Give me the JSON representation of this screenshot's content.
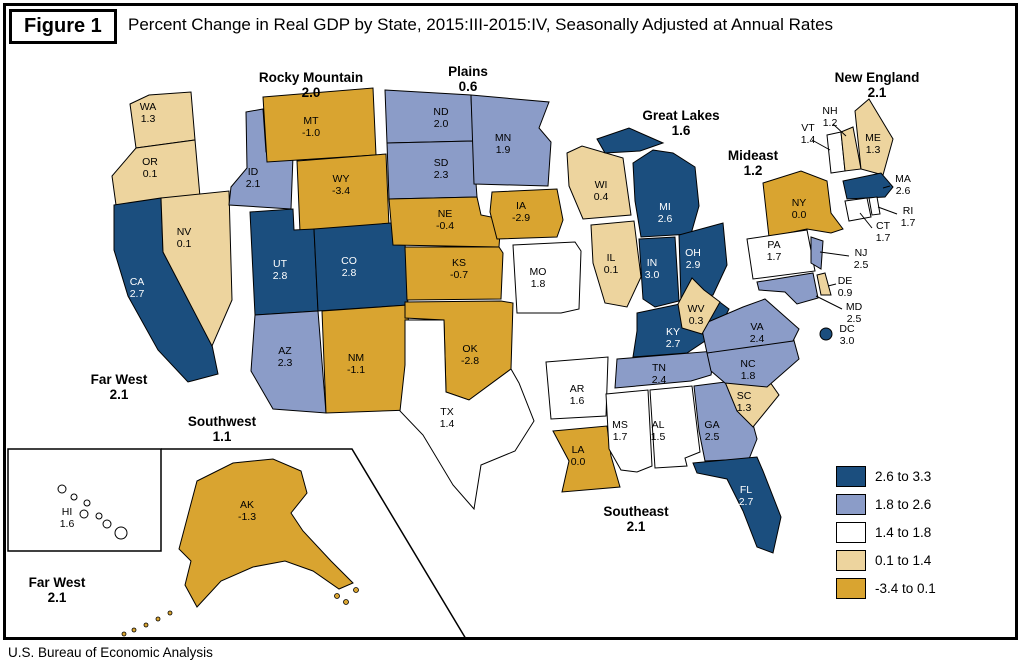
{
  "figure": {
    "label": "Figure 1",
    "title": "Percent Change in Real GDP by State, 2015:III-2015:IV, Seasonally Adjusted at Annual Rates",
    "source": "U.S. Bureau of Economic Analysis"
  },
  "chart_data": {
    "type": "heatmap",
    "subtype": "us-state-choropleth",
    "title": "Percent Change in Real GDP by State, 2015:III-2015:IV, Seasonally Adjusted at Annual Rates",
    "unit": "percent change, seasonally adjusted annual rate",
    "legend_position": "bottom-right",
    "legend": [
      {
        "bucket": 0,
        "label": "2.6 to 3.3",
        "color": "#1B4E7E"
      },
      {
        "bucket": 1,
        "label": "1.8 to 2.6",
        "color": "#8B9CC8"
      },
      {
        "bucket": 2,
        "label": "1.4 to 1.8",
        "color": "#FFFFFF"
      },
      {
        "bucket": 3,
        "label": "0.1 to 1.4",
        "color": "#EDD49E"
      },
      {
        "bucket": 4,
        "label": "-3.4 to 0.1",
        "color": "#D9A430"
      }
    ],
    "regions": [
      {
        "id": "new-england",
        "name": "New England",
        "value": "2.1"
      },
      {
        "id": "mideast",
        "name": "Mideast",
        "value": "1.2"
      },
      {
        "id": "great-lakes",
        "name": "Great Lakes",
        "value": "1.6"
      },
      {
        "id": "plains",
        "name": "Plains",
        "value": "0.6"
      },
      {
        "id": "southeast",
        "name": "Southeast",
        "value": "2.1"
      },
      {
        "id": "southwest",
        "name": "Southwest",
        "value": "1.1"
      },
      {
        "id": "rocky-mountain",
        "name": "Rocky Mountain",
        "value": "2.0"
      },
      {
        "id": "far-west",
        "name": "Far West",
        "value": "2.1"
      },
      {
        "id": "far-west-inset",
        "name": "Far West",
        "value": "2.1"
      }
    ],
    "states": [
      {
        "code": "WA",
        "value": "1.3",
        "bucket": 3
      },
      {
        "code": "OR",
        "value": "0.1",
        "bucket": 3
      },
      {
        "code": "CA",
        "value": "2.7",
        "bucket": 0
      },
      {
        "code": "NV",
        "value": "0.1",
        "bucket": 3
      },
      {
        "code": "ID",
        "value": "2.1",
        "bucket": 1
      },
      {
        "code": "MT",
        "value": "-1.0",
        "bucket": 4
      },
      {
        "code": "WY",
        "value": "-3.4",
        "bucket": 4
      },
      {
        "code": "UT",
        "value": "2.8",
        "bucket": 0
      },
      {
        "code": "CO",
        "value": "2.8",
        "bucket": 0
      },
      {
        "code": "AZ",
        "value": "2.3",
        "bucket": 1
      },
      {
        "code": "NM",
        "value": "-1.1",
        "bucket": 4
      },
      {
        "code": "ND",
        "value": "2.0",
        "bucket": 1
      },
      {
        "code": "SD",
        "value": "2.3",
        "bucket": 1
      },
      {
        "code": "NE",
        "value": "-0.4",
        "bucket": 4
      },
      {
        "code": "KS",
        "value": "-0.7",
        "bucket": 4
      },
      {
        "code": "OK",
        "value": "-2.8",
        "bucket": 4
      },
      {
        "code": "TX",
        "value": "1.4",
        "bucket": 2
      },
      {
        "code": "MN",
        "value": "1.9",
        "bucket": 1
      },
      {
        "code": "IA",
        "value": "-2.9",
        "bucket": 4
      },
      {
        "code": "MO",
        "value": "1.8",
        "bucket": 2
      },
      {
        "code": "AR",
        "value": "1.6",
        "bucket": 2
      },
      {
        "code": "LA",
        "value": "0.0",
        "bucket": 4
      },
      {
        "code": "WI",
        "value": "0.4",
        "bucket": 3
      },
      {
        "code": "IL",
        "value": "0.1",
        "bucket": 3
      },
      {
        "code": "MI",
        "value": "2.6",
        "bucket": 0
      },
      {
        "code": "IN",
        "value": "3.0",
        "bucket": 0
      },
      {
        "code": "OH",
        "value": "2.9",
        "bucket": 0
      },
      {
        "code": "KY",
        "value": "2.7",
        "bucket": 0
      },
      {
        "code": "TN",
        "value": "2.4",
        "bucket": 1
      },
      {
        "code": "MS",
        "value": "1.7",
        "bucket": 2
      },
      {
        "code": "AL",
        "value": "1.5",
        "bucket": 2
      },
      {
        "code": "GA",
        "value": "2.5",
        "bucket": 1
      },
      {
        "code": "SC",
        "value": "1.3",
        "bucket": 3
      },
      {
        "code": "NC",
        "value": "1.8",
        "bucket": 1
      },
      {
        "code": "VA",
        "value": "2.4",
        "bucket": 1
      },
      {
        "code": "WV",
        "value": "0.3",
        "bucket": 3
      },
      {
        "code": "FL",
        "value": "2.7",
        "bucket": 0
      },
      {
        "code": "NY",
        "value": "0.0",
        "bucket": 4
      },
      {
        "code": "PA",
        "value": "1.7",
        "bucket": 2
      },
      {
        "code": "NJ",
        "value": "2.5",
        "bucket": 1
      },
      {
        "code": "DE",
        "value": "0.9",
        "bucket": 3
      },
      {
        "code": "MD",
        "value": "2.5",
        "bucket": 1
      },
      {
        "code": "DC",
        "value": "3.0",
        "bucket": 0
      },
      {
        "code": "VT",
        "value": "1.4",
        "bucket": 2
      },
      {
        "code": "NH",
        "value": "1.2",
        "bucket": 3
      },
      {
        "code": "ME",
        "value": "1.3",
        "bucket": 3
      },
      {
        "code": "MA",
        "value": "2.6",
        "bucket": 0
      },
      {
        "code": "CT",
        "value": "1.7",
        "bucket": 2
      },
      {
        "code": "RI",
        "value": "1.7",
        "bucket": 2
      },
      {
        "code": "AK",
        "value": "-1.3",
        "bucket": 4
      },
      {
        "code": "HI",
        "value": "1.6",
        "bucket": 2
      }
    ]
  }
}
